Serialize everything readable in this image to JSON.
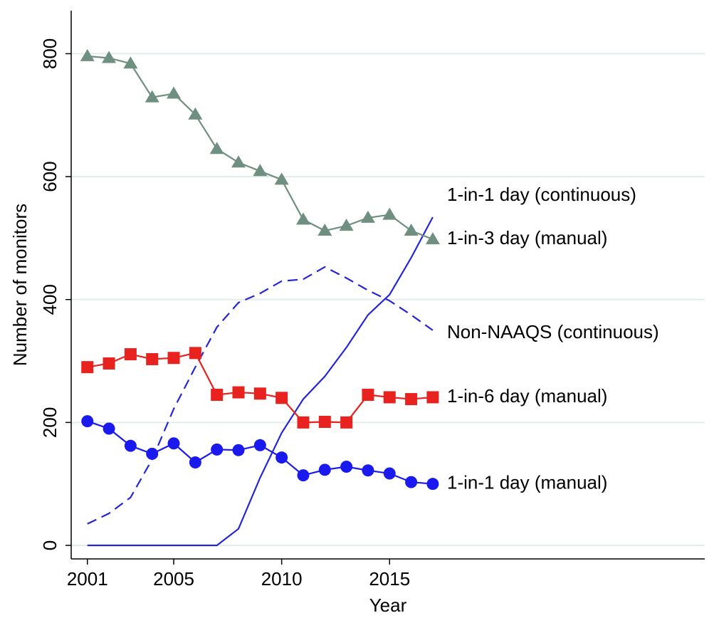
{
  "chart_data": {
    "type": "line",
    "y_label": "Number of monitors",
    "x_label": "Year",
    "x": [
      2001,
      2002,
      2003,
      2004,
      2005,
      2006,
      2007,
      2008,
      2009,
      2010,
      2011,
      2012,
      2013,
      2014,
      2015,
      2016,
      2017
    ],
    "xlim": [
      2000.25,
      2029.6
    ],
    "xticks": [
      2001,
      2005,
      2010,
      2015
    ],
    "ylim": [
      -22,
      870
    ],
    "yticks": [
      0,
      200,
      400,
      600,
      800
    ],
    "grid": true,
    "series": [
      {
        "name": "1-in-1 day (continuous)",
        "color": "#2626d6",
        "marker": null,
        "dash": false,
        "values": [
          0,
          0,
          0,
          0,
          0,
          0,
          0,
          27,
          110,
          183,
          238,
          275,
          322,
          375,
          408,
          468,
          534
        ]
      },
      {
        "name": "1-in-3 day (manual)",
        "color": "#6f8f80",
        "marker": "triangle",
        "dash": false,
        "values": [
          796,
          793,
          784,
          729,
          735,
          701,
          645,
          623,
          609,
          595,
          530,
          512,
          520,
          533,
          538,
          512,
          498
        ]
      },
      {
        "name": "Non-NAAQS (continuous)",
        "color": "#2626d6",
        "marker": null,
        "dash": true,
        "values": [
          35,
          52,
          78,
          140,
          222,
          290,
          355,
          395,
          410,
          430,
          433,
          453,
          435,
          415,
          398,
          375,
          350
        ]
      },
      {
        "name": "1-in-6 day (manual)",
        "color": "#e8221e",
        "marker": "square",
        "dash": false,
        "values": [
          290,
          296,
          311,
          303,
          305,
          313,
          245,
          249,
          247,
          240,
          200,
          201,
          200,
          245,
          241,
          238,
          241
        ]
      },
      {
        "name": "1-in-1 day (manual)",
        "color": "#1a1aee",
        "marker": "circle",
        "dash": false,
        "values": [
          202,
          190,
          162,
          149,
          166,
          135,
          156,
          155,
          163,
          143,
          114,
          123,
          128,
          122,
          117,
          103,
          100
        ]
      }
    ]
  }
}
